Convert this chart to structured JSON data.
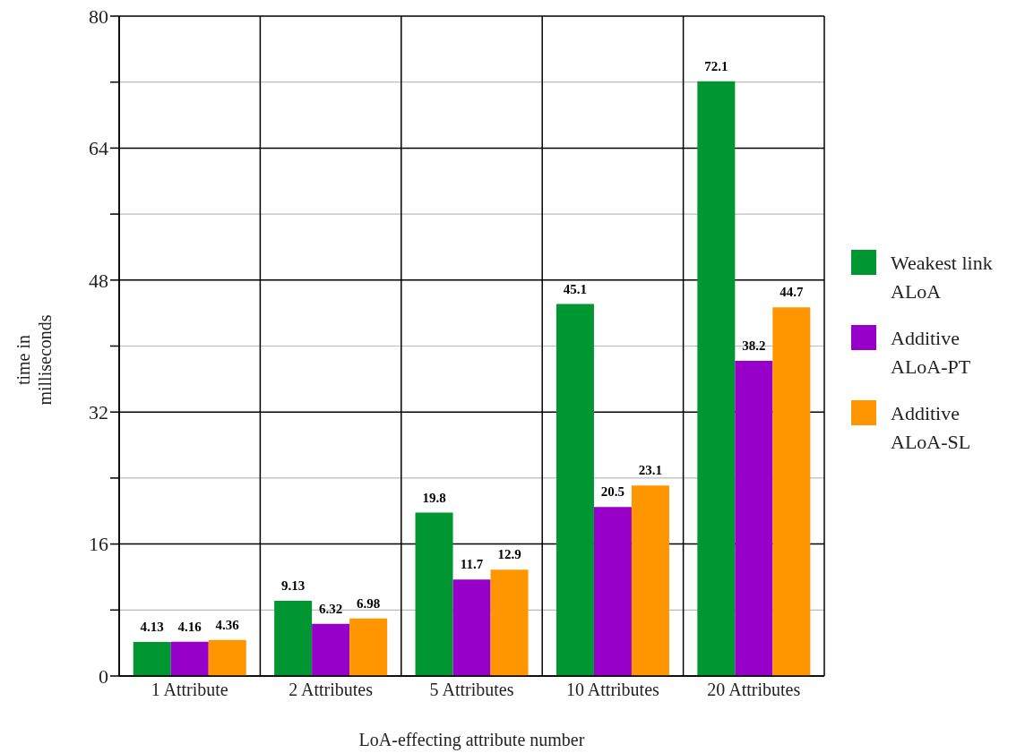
{
  "chart_data": {
    "type": "bar",
    "xlabel": "LoA-effecting attribute number",
    "ylabel": "time in milliseconds",
    "categories": [
      "1 Attribute",
      "2 Attributes",
      "5 Attributes",
      "10 Attributes",
      "20 Attributes"
    ],
    "series": [
      {
        "name": "Weakest link ALoA",
        "color": "#009632",
        "values": [
          4.13,
          9.13,
          19.8,
          45.1,
          72.1
        ]
      },
      {
        "name": "Additive ALoA-PT",
        "color": "#9600c8",
        "values": [
          4.16,
          6.32,
          11.7,
          20.5,
          38.2
        ]
      },
      {
        "name": "Additive ALoA-SL",
        "color": "#ff9600",
        "values": [
          4.36,
          6.98,
          12.9,
          23.1,
          44.7
        ]
      }
    ],
    "ylim": [
      0,
      80
    ],
    "yticks": [
      0,
      {
        "value": 8,
        "label": null
      },
      16,
      {
        "value": 24,
        "label": null
      },
      32,
      {
        "value": 40,
        "label": null
      },
      48,
      {
        "value": 56,
        "label": null
      },
      64,
      {
        "value": 72,
        "label": null
      },
      80
    ],
    "grid": true,
    "legend": "right",
    "data_labels": true
  }
}
